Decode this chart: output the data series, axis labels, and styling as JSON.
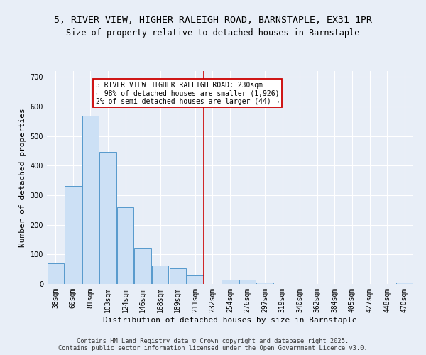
{
  "title": "5, RIVER VIEW, HIGHER RALEIGH ROAD, BARNSTAPLE, EX31 1PR",
  "subtitle": "Size of property relative to detached houses in Barnstaple",
  "xlabel": "Distribution of detached houses by size in Barnstaple",
  "ylabel": "Number of detached properties",
  "categories": [
    "38sqm",
    "60sqm",
    "81sqm",
    "103sqm",
    "124sqm",
    "146sqm",
    "168sqm",
    "189sqm",
    "211sqm",
    "232sqm",
    "254sqm",
    "276sqm",
    "297sqm",
    "319sqm",
    "340sqm",
    "362sqm",
    "384sqm",
    "405sqm",
    "427sqm",
    "448sqm",
    "470sqm"
  ],
  "values": [
    70,
    332,
    568,
    447,
    260,
    123,
    63,
    53,
    28,
    0,
    14,
    14,
    5,
    0,
    0,
    0,
    0,
    0,
    0,
    0,
    5
  ],
  "bar_color": "#cce0f5",
  "bar_edge_color": "#5599cc",
  "vline_x": 8.5,
  "vline_color": "#cc0000",
  "annotation_text": "5 RIVER VIEW HIGHER RALEIGH ROAD: 230sqm\n← 98% of detached houses are smaller (1,926)\n2% of semi-detached houses are larger (44) →",
  "annotation_box_color": "#ffffff",
  "annotation_box_edge_color": "#cc0000",
  "ylim": [
    0,
    720
  ],
  "yticks": [
    0,
    100,
    200,
    300,
    400,
    500,
    600,
    700
  ],
  "bg_color": "#e8eef7",
  "grid_color": "#ffffff",
  "title_fontsize": 9.5,
  "subtitle_fontsize": 8.5,
  "axis_fontsize": 8,
  "tick_fontsize": 7,
  "annot_fontsize": 7,
  "footer_text": "Contains HM Land Registry data © Crown copyright and database right 2025.\nContains public sector information licensed under the Open Government Licence v3.0."
}
